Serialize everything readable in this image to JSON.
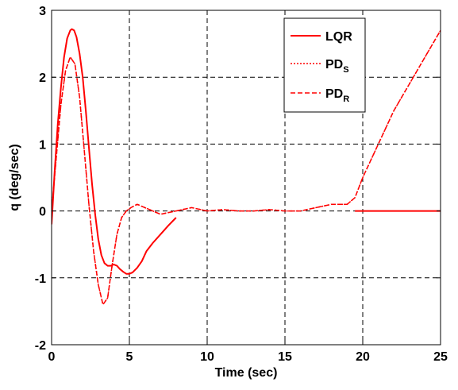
{
  "chart_data": {
    "type": "line",
    "title": "",
    "xlabel": "Time (sec)",
    "ylabel": "q (deg/sec)",
    "xlim": [
      0,
      25
    ],
    "ylim": [
      -2,
      3
    ],
    "xticks": [
      0,
      5,
      10,
      15,
      20,
      25
    ],
    "yticks": [
      -2,
      -1,
      0,
      1,
      2,
      3
    ],
    "grid": true,
    "legend_position": "top-right",
    "color": "#ff0000",
    "series": [
      {
        "name": "LQR",
        "name_main": "LQR",
        "name_sub": "",
        "style": "solid",
        "x": [
          0,
          0.2,
          0.4,
          0.6,
          0.8,
          1.0,
          1.2,
          1.3,
          1.45,
          1.6,
          1.8,
          2.0,
          2.2,
          2.4,
          2.6,
          2.8,
          3.0,
          3.2,
          3.4,
          3.6,
          3.8,
          4.0,
          4.2,
          4.4,
          4.6,
          4.8,
          5.0,
          5.2,
          5.5,
          5.8,
          6.1,
          6.5,
          7.0,
          7.5,
          8.0
        ],
        "y": [
          -0.2,
          0.6,
          1.3,
          1.85,
          2.3,
          2.58,
          2.7,
          2.72,
          2.7,
          2.6,
          2.35,
          2.0,
          1.5,
          0.95,
          0.4,
          -0.05,
          -0.42,
          -0.66,
          -0.78,
          -0.82,
          -0.82,
          -0.8,
          -0.82,
          -0.87,
          -0.91,
          -0.94,
          -0.94,
          -0.92,
          -0.85,
          -0.75,
          -0.6,
          -0.48,
          -0.35,
          -0.22,
          -0.1
        ]
      },
      {
        "name": "PDS",
        "name_main": "PD",
        "name_sub": "S",
        "style": "dotted",
        "x": [
          0,
          0.3,
          0.6,
          0.9,
          1.2,
          1.5,
          1.8,
          2.1,
          2.4,
          2.7,
          3.0,
          3.3,
          3.6,
          3.9,
          4.2,
          4.5,
          4.8,
          5.1,
          5.5,
          6.0,
          6.5,
          7.0,
          8.0,
          9.0,
          10.0,
          11.0,
          12.0,
          13.0,
          14.0,
          15.0,
          16.0,
          17.0,
          18.0,
          19.0,
          19.5,
          20.0,
          21.0,
          22.0,
          23.0,
          24.0,
          25.0
        ],
        "y": [
          0,
          0.8,
          1.6,
          2.1,
          2.3,
          2.2,
          1.7,
          0.9,
          0.1,
          -0.6,
          -1.1,
          -1.4,
          -1.3,
          -0.8,
          -0.35,
          -0.1,
          0.0,
          0.05,
          0.1,
          0.05,
          0.0,
          -0.05,
          0.0,
          0.05,
          0.0,
          0.02,
          0.0,
          0.0,
          0.02,
          0.0,
          0.0,
          0.05,
          0.1,
          0.1,
          0.2,
          0.5,
          1.0,
          1.5,
          1.9,
          2.3,
          2.7
        ]
      },
      {
        "name": "PDR",
        "name_main": "PD",
        "name_sub": "R",
        "style": "dashed",
        "x": [
          0,
          0.3,
          0.6,
          0.9,
          1.2,
          1.5,
          1.8,
          2.1,
          2.4,
          2.7,
          3.0,
          3.3,
          3.6,
          3.9,
          4.2,
          4.5,
          4.8,
          5.1,
          5.5,
          6.0,
          6.5,
          7.0,
          8.0,
          9.0,
          10.0,
          11.0,
          12.0,
          13.0,
          14.0,
          15.0,
          16.0,
          17.0,
          18.0,
          19.0,
          19.5,
          20.0,
          21.0,
          22.0,
          23.0,
          24.0,
          25.0
        ],
        "y": [
          0,
          0.8,
          1.6,
          2.1,
          2.3,
          2.2,
          1.7,
          0.9,
          0.1,
          -0.6,
          -1.1,
          -1.4,
          -1.3,
          -0.8,
          -0.35,
          -0.1,
          0.0,
          0.05,
          0.1,
          0.05,
          0.0,
          -0.05,
          0.0,
          0.05,
          0.0,
          0.02,
          0.0,
          0.0,
          0.02,
          0.0,
          0.0,
          0.05,
          0.1,
          0.1,
          0.2,
          0.5,
          1.0,
          1.5,
          1.9,
          2.3,
          2.7
        ]
      }
    ],
    "lqr_tail": {
      "x": [
        19.5,
        25
      ],
      "y": [
        0,
        0
      ]
    }
  }
}
